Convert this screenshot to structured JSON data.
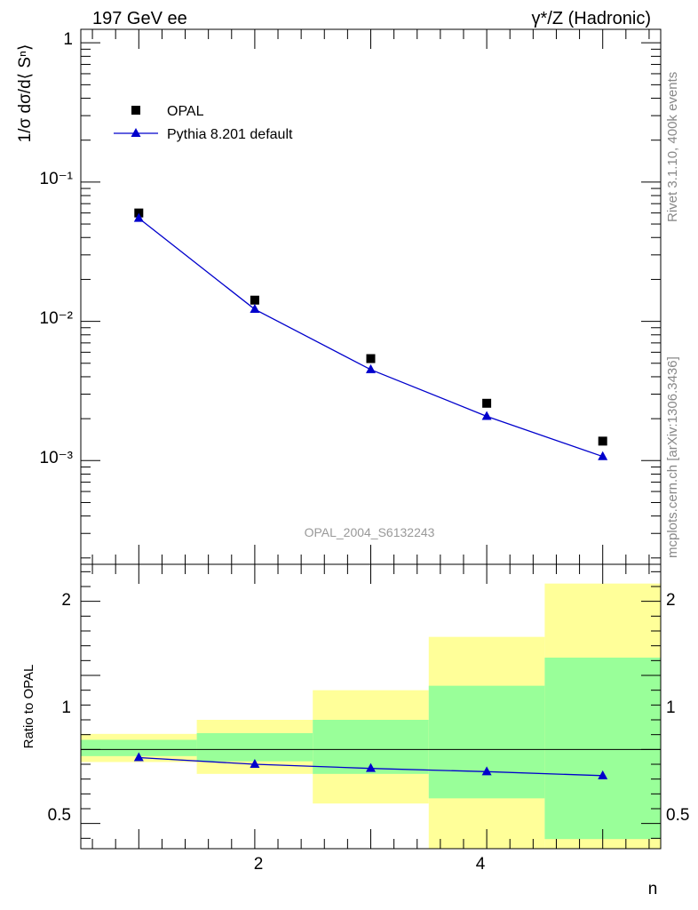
{
  "header": {
    "left_title": "197 GeV ee",
    "right_title": "γ*/Z (Hadronic)"
  },
  "side_text": {
    "top": "Rivet 3.1.10,  400k events",
    "bottom": "mcplots.cern.ch [arXiv:1306.3436]"
  },
  "watermark": "OPAL_2004_S6132243",
  "axes": {
    "main_ylabel": "1/σ dσ/d⟨ Sⁿ⟩",
    "ratio_ylabel": "Ratio to OPAL",
    "xlabel": "n"
  },
  "legend": {
    "data_label": "OPAL",
    "mc_label": "Pythia 8.201 default"
  },
  "colors": {
    "data": "#000000",
    "mc": "#0000cc",
    "band_outer": "#ffff99",
    "band_inner": "#99ff99"
  },
  "chart_data": [
    {
      "type": "scatter",
      "scale": "log",
      "x": [
        1,
        2,
        3,
        4,
        5
      ],
      "xlim": [
        0.5,
        5.5
      ],
      "ylim": [
        0.00018,
        1.25
      ],
      "x_ticks": [
        "2",
        "4"
      ],
      "y_ticks": [
        "1",
        "10⁻¹",
        "10⁻²",
        "10⁻³"
      ],
      "series": [
        {
          "name": "OPAL",
          "values": [
            0.06,
            0.0142,
            0.0054,
            0.00258,
            0.00138
          ]
        },
        {
          "name": "Pythia 8.201 default",
          "values": [
            0.055,
            0.0122,
            0.0045,
            0.00208,
            0.00107
          ]
        }
      ],
      "legend_position": "top-left"
    },
    {
      "type": "line",
      "x": [
        1,
        2,
        3,
        4,
        5
      ],
      "xlim": [
        0.5,
        5.5
      ],
      "ylim": [
        0.33,
        2.25
      ],
      "y_ticks": [
        "0.5",
        "1",
        "2"
      ],
      "x_ticks": [
        "2",
        "4"
      ],
      "reference": 1,
      "series": [
        {
          "name": "Pythia 8.201 default",
          "values": [
            0.945,
            0.9,
            0.872,
            0.85,
            0.823
          ]
        }
      ],
      "bands": [
        {
          "x_low": 0.5,
          "x_high": 1.5,
          "outer": [
            0.915,
            1.105
          ],
          "inner": [
            0.955,
            1.065
          ]
        },
        {
          "x_low": 1.5,
          "x_high": 2.5,
          "outer": [
            0.835,
            1.2
          ],
          "inner": [
            0.92,
            1.11
          ]
        },
        {
          "x_low": 2.5,
          "x_high": 3.5,
          "outer": [
            0.635,
            1.4
          ],
          "inner": [
            0.835,
            1.2
          ]
        },
        {
          "x_low": 3.5,
          "x_high": 4.5,
          "outer": [
            0.33,
            1.76
          ],
          "inner": [
            0.67,
            1.43
          ]
        },
        {
          "x_low": 4.5,
          "x_high": 5.5,
          "outer": [
            0.33,
            2.12
          ],
          "inner": [
            0.395,
            1.62
          ]
        }
      ]
    }
  ]
}
